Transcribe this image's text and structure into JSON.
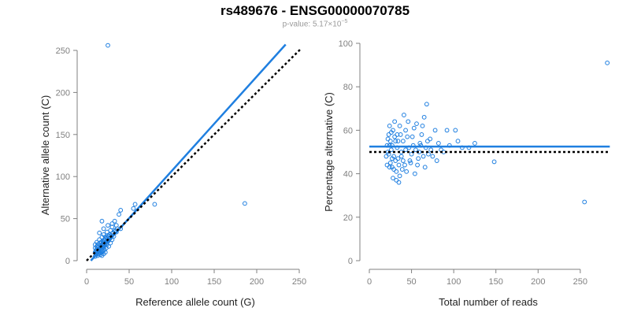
{
  "header": {
    "title": "rs489676 - ENSG00000070785",
    "pvalue_prefix": "p-value: 5.17×10",
    "pvalue_exp": "−5"
  },
  "colors": {
    "points": "#1f7fe0",
    "fit": "#1f7fe0",
    "reference": "#000000",
    "axis": "#808080"
  },
  "chart_data": [
    {
      "type": "scatter",
      "xlabel": "Reference allele count (G)",
      "ylabel": "Alternative allele count (C)",
      "xlim": [
        0,
        250
      ],
      "ylim": [
        0,
        250
      ],
      "xticks": [
        0,
        50,
        100,
        150,
        200,
        250
      ],
      "yticks": [
        0,
        50,
        100,
        150,
        200,
        250
      ],
      "lines": [
        {
          "style": "solid",
          "color": "#1f7fe0",
          "x": [
            5,
            234
          ],
          "y": [
            0,
            257
          ]
        },
        {
          "style": "dotted",
          "color": "#000000",
          "x": [
            0,
            252
          ],
          "y": [
            0,
            252
          ]
        }
      ],
      "points": [
        [
          25,
          256
        ],
        [
          186,
          68
        ],
        [
          80,
          67
        ],
        [
          57,
          67
        ],
        [
          55,
          62
        ],
        [
          40,
          60
        ],
        [
          38,
          55
        ],
        [
          33,
          47
        ],
        [
          18,
          47
        ],
        [
          30,
          44
        ],
        [
          35,
          42
        ],
        [
          25,
          42
        ],
        [
          30,
          40
        ],
        [
          40,
          38
        ],
        [
          20,
          38
        ],
        [
          28,
          36
        ],
        [
          35,
          34
        ],
        [
          24,
          34
        ],
        [
          15,
          33
        ],
        [
          30,
          32
        ],
        [
          20,
          31
        ],
        [
          25,
          30
        ],
        [
          32,
          29
        ],
        [
          18,
          28
        ],
        [
          28,
          27
        ],
        [
          22,
          26
        ],
        [
          15,
          25
        ],
        [
          30,
          25
        ],
        [
          20,
          24
        ],
        [
          25,
          23
        ],
        [
          17,
          22
        ],
        [
          12,
          22
        ],
        [
          22,
          21
        ],
        [
          28,
          21
        ],
        [
          14,
          20
        ],
        [
          19,
          20
        ],
        [
          10,
          19
        ],
        [
          24,
          19
        ],
        [
          16,
          18
        ],
        [
          21,
          18
        ],
        [
          12,
          17
        ],
        [
          18,
          17
        ],
        [
          26,
          17
        ],
        [
          14,
          16
        ],
        [
          20,
          16
        ],
        [
          10,
          15
        ],
        [
          16,
          15
        ],
        [
          23,
          15
        ],
        [
          12,
          14
        ],
        [
          18,
          14
        ],
        [
          15,
          13
        ],
        [
          21,
          13
        ],
        [
          11,
          12
        ],
        [
          17,
          12
        ],
        [
          13,
          11
        ],
        [
          19,
          11
        ],
        [
          10,
          10
        ],
        [
          15,
          10
        ],
        [
          22,
          10
        ],
        [
          12,
          9
        ],
        [
          17,
          9
        ],
        [
          14,
          8
        ],
        [
          20,
          8
        ],
        [
          11,
          7
        ],
        [
          16,
          7
        ],
        [
          13,
          6
        ],
        [
          18,
          6
        ],
        [
          10,
          5
        ],
        [
          15,
          12
        ],
        [
          12,
          10
        ],
        [
          26,
          24
        ],
        [
          29,
          30
        ],
        [
          33,
          35
        ],
        [
          36,
          38
        ],
        [
          22,
          28
        ],
        [
          19,
          23
        ],
        [
          24,
          27
        ],
        [
          27,
          31
        ],
        [
          31,
          33
        ],
        [
          34,
          36
        ],
        [
          13,
          18
        ],
        [
          16,
          21
        ],
        [
          21,
          25
        ],
        [
          23,
          20
        ],
        [
          26,
          29
        ],
        [
          14,
          13
        ],
        [
          17,
          16
        ],
        [
          19,
          19
        ],
        [
          11,
          11
        ],
        [
          20,
          22
        ]
      ]
    },
    {
      "type": "scatter",
      "xlabel": "Total number of reads",
      "ylabel": "Percentage alternative (C)",
      "xlim": [
        0,
        280
      ],
      "ylim": [
        0,
        100
      ],
      "xticks": [
        0,
        50,
        100,
        150,
        200,
        250
      ],
      "yticks": [
        0,
        20,
        40,
        60,
        80,
        100
      ],
      "lines": [
        {
          "style": "solid",
          "color": "#1f7fe0",
          "x": [
            0,
            285
          ],
          "y": [
            52.5,
            52.5
          ]
        },
        {
          "style": "dotted",
          "color": "#000000",
          "x": [
            0,
            285
          ],
          "y": [
            50,
            50
          ]
        }
      ],
      "points": [
        [
          282,
          91
        ],
        [
          255,
          27
        ],
        [
          148,
          45.5
        ],
        [
          125,
          54
        ],
        [
          118,
          52
        ],
        [
          102,
          60
        ],
        [
          105,
          55
        ],
        [
          92,
          60
        ],
        [
          85,
          51
        ],
        [
          75,
          48
        ],
        [
          68,
          72
        ],
        [
          65,
          66
        ],
        [
          62,
          58
        ],
        [
          60,
          54
        ],
        [
          58,
          47
        ],
        [
          55,
          51
        ],
        [
          52,
          53
        ],
        [
          50,
          49
        ],
        [
          48,
          46
        ],
        [
          45,
          57
        ],
        [
          43,
          60
        ],
        [
          42,
          44
        ],
        [
          40,
          55
        ],
        [
          38,
          50
        ],
        [
          36,
          62
        ],
        [
          35,
          36
        ],
        [
          34,
          47
        ],
        [
          33,
          58
        ],
        [
          32,
          41
        ],
        [
          31,
          55
        ],
        [
          30,
          64
        ],
        [
          29,
          48
        ],
        [
          28,
          38
        ],
        [
          27,
          53
        ],
        [
          26,
          59
        ],
        [
          25,
          45
        ],
        [
          24,
          62
        ],
        [
          23,
          49
        ],
        [
          22,
          56
        ],
        [
          21,
          44
        ],
        [
          70,
          49
        ],
        [
          72,
          56
        ],
        [
          78,
          60
        ],
        [
          80,
          46
        ],
        [
          66,
          43
        ],
        [
          63,
          62
        ],
        [
          56,
          63
        ],
        [
          54,
          40
        ],
        [
          46,
          64
        ],
        [
          44,
          41
        ],
        [
          41,
          67
        ],
        [
          39,
          42
        ],
        [
          37,
          58
        ],
        [
          35,
          44
        ],
        [
          33,
          52
        ],
        [
          31,
          46
        ],
        [
          30,
          57
        ],
        [
          29,
          42
        ],
        [
          28,
          60
        ],
        [
          27,
          47
        ],
        [
          26,
          51
        ],
        [
          25,
          55
        ],
        [
          24,
          43
        ],
        [
          23,
          58
        ],
        [
          22,
          50
        ],
        [
          21,
          53
        ],
        [
          20,
          48
        ],
        [
          32,
          37
        ],
        [
          36,
          39
        ],
        [
          40,
          46
        ],
        [
          47,
          52
        ],
        [
          51,
          57
        ],
        [
          53,
          61
        ],
        [
          57,
          44
        ],
        [
          59,
          50
        ],
        [
          61,
          53
        ],
        [
          64,
          48
        ],
        [
          67,
          52
        ],
        [
          69,
          55
        ],
        [
          73,
          51
        ],
        [
          82,
          54
        ],
        [
          88,
          50
        ],
        [
          95,
          53
        ],
        [
          110,
          52
        ],
        [
          38,
          48
        ],
        [
          43,
          51
        ],
        [
          49,
          45
        ],
        [
          24,
          53
        ],
        [
          27,
          43
        ],
        [
          34,
          55
        ]
      ]
    }
  ]
}
